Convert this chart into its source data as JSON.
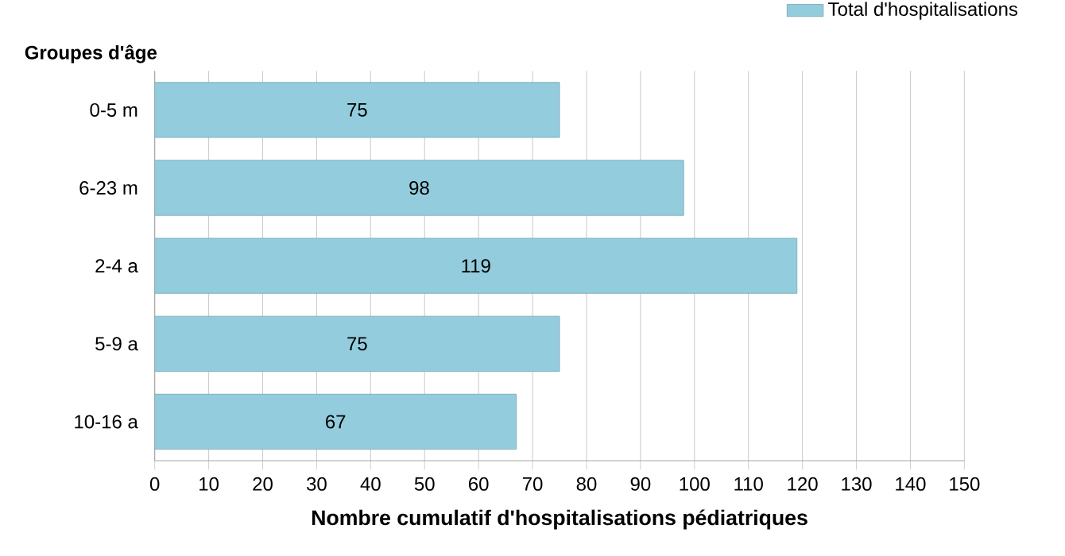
{
  "chart_data": {
    "type": "bar",
    "orientation": "horizontal",
    "ylabel": "Groupes d'âge",
    "xlabel": "Nombre cumulatif d'hospitalisations pédiatriques",
    "categories": [
      "0-5 m",
      "6-23 m",
      "2-4 a",
      "5-9 a",
      "10-16 a"
    ],
    "series": [
      {
        "name": "Total d'hospitalisations",
        "color": "#93cddd",
        "values": [
          75,
          98,
          119,
          75,
          67
        ]
      }
    ],
    "xlim": [
      0,
      150
    ],
    "xticks": [
      0,
      10,
      20,
      30,
      40,
      50,
      60,
      70,
      80,
      90,
      100,
      110,
      120,
      130,
      140,
      150
    ],
    "grid": "x",
    "legend": "top right",
    "data_labels": true
  }
}
